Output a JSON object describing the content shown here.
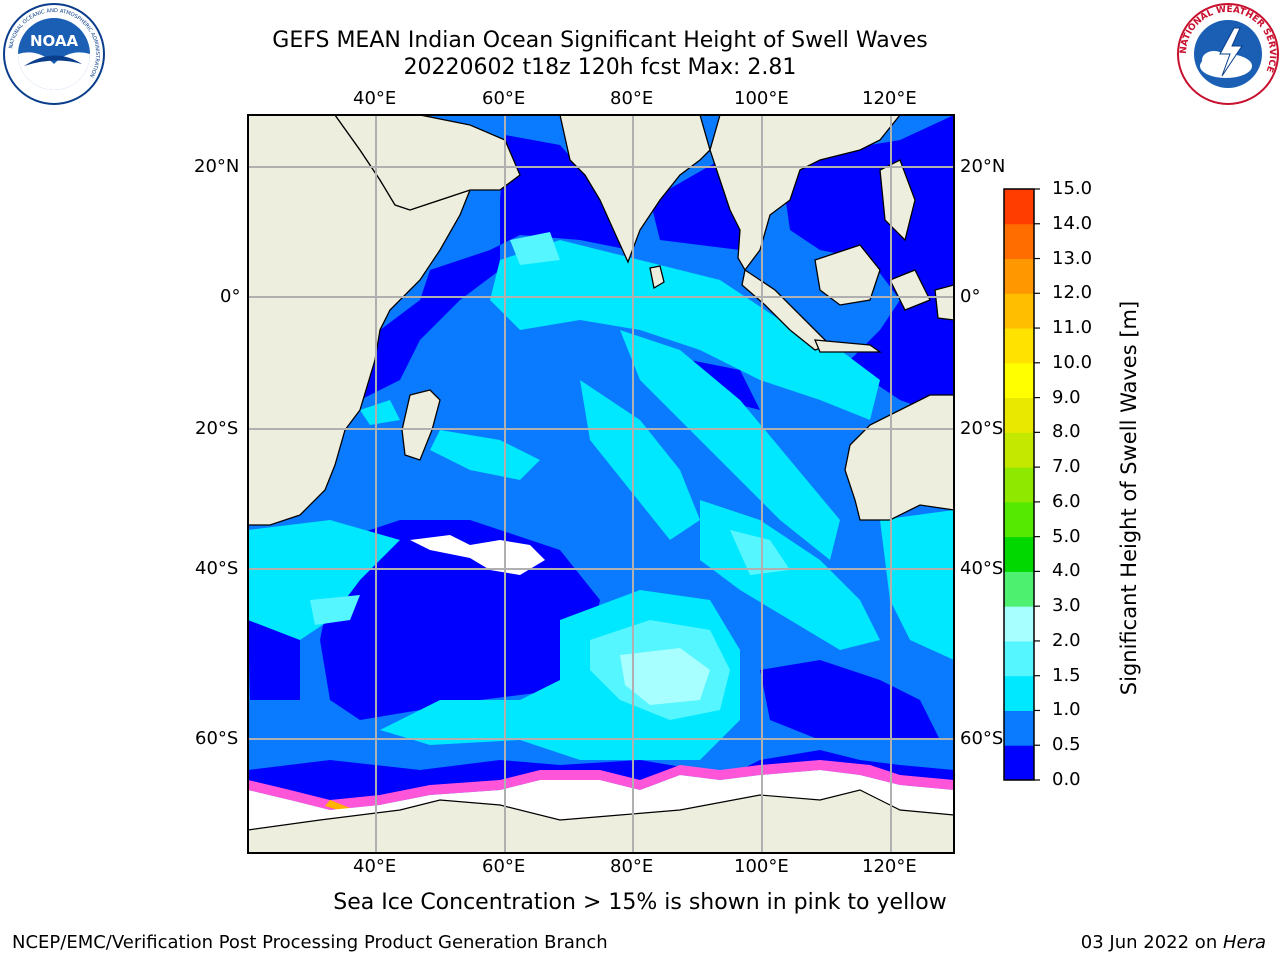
{
  "title": {
    "line1": "GEFS MEAN Indian Ocean Significant Height of Swell Waves",
    "line2": "20220602 t18z 120h fcst   Max: 2.81"
  },
  "axes": {
    "lon_labels": [
      "40°E",
      "60°E",
      "80°E",
      "100°E",
      "120°E"
    ],
    "lat_labels": [
      "20°N",
      "0°",
      "20°S",
      "40°S",
      "60°S"
    ]
  },
  "colorbar": {
    "label": "Significant Height of Swell Waves [m]",
    "ticks": [
      "0.0",
      "0.5",
      "1.0",
      "1.5",
      "2.0",
      "3.0",
      "4.0",
      "5.0",
      "6.0",
      "7.0",
      "8.0",
      "9.0",
      "10.0",
      "11.0",
      "12.0",
      "13.0",
      "14.0",
      "15.0"
    ],
    "colors": [
      "#0000ff",
      "#0a7bff",
      "#00e8ff",
      "#55f6ff",
      "#a8ffff",
      "#4ef06f",
      "#00d800",
      "#55e800",
      "#8ee800",
      "#c4e800",
      "#e8e800",
      "#ffff00",
      "#ffe200",
      "#ffbf00",
      "#ff9800",
      "#ff6d00",
      "#ff3d00",
      "#ff0000"
    ]
  },
  "notes": {
    "sea_ice": "Sea Ice Concentration > 15% is shown in pink to yellow"
  },
  "footer": {
    "left": "NCEP/EMC/Verification Post Processing Product Generation Branch",
    "date": "03 Jun 2022 on ",
    "machine": "Hera"
  },
  "logos": {
    "noaa_text": "NOAA",
    "noaa_ring": "NATIONAL OCEANIC AND ATMOSPHERIC ADMINISTRATION",
    "noaa_ring_bottom": "U.S. DEPARTMENT OF COMMERCE",
    "nws_text": "NATIONAL WEATHER SERVICE"
  }
}
